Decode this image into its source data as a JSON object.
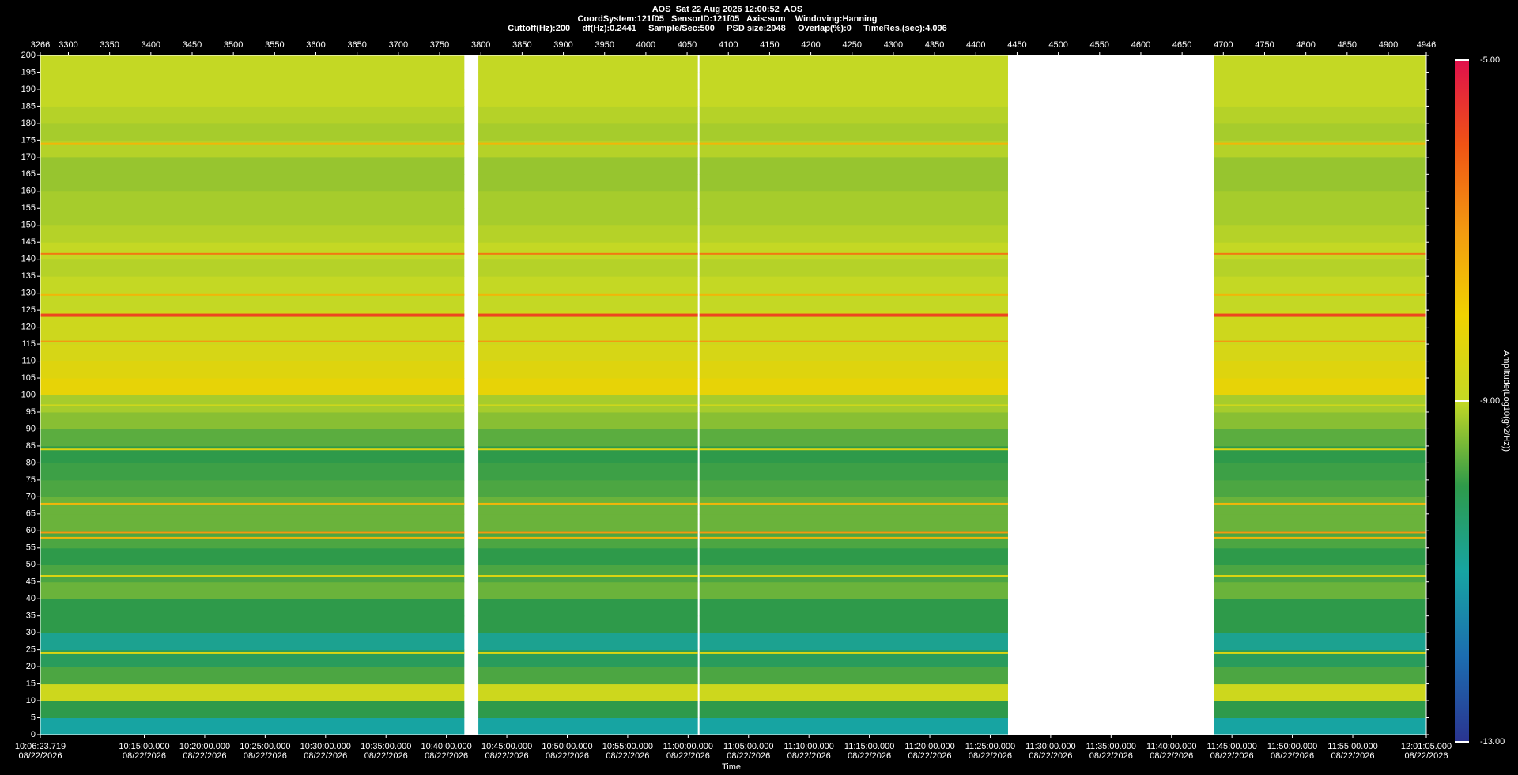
{
  "chart_data": {
    "type": "spectrogram",
    "title": "AOS  Sat 22 Aug 2026 12:00:52  AOS",
    "subtitle": [
      "CoordSystem:121f05   SensorID:121f05   Axis:sum    Windoving:Hanning",
      "Cuttoff(Hz):200     df(Hz):0.2441     Sample/Sec:500     PSD size:2048     Overlap(%):0     TimeRes.(sec):4.096"
    ],
    "xlabel": "Time",
    "colorbar_label": "Amplitude(Log10(g^2/Hz))",
    "xlim": [
      3266,
      4946
    ],
    "xticks": [
      3266,
      3300,
      3350,
      3400,
      3450,
      3500,
      3550,
      3600,
      3650,
      3700,
      3750,
      3800,
      3850,
      3900,
      3950,
      4000,
      4050,
      4100,
      4150,
      4200,
      4250,
      4300,
      4350,
      4400,
      4450,
      4500,
      4550,
      4600,
      4650,
      4700,
      4750,
      4800,
      4850,
      4900,
      4946
    ],
    "timelim": [
      36383.719,
      43265
    ],
    "timeticks": [
      {
        "value": 36383.719,
        "label": "10:06:23.719",
        "date": "08/22/2026"
      },
      {
        "value": 36900,
        "label": "10:15:00.000",
        "date": "08/22/2026"
      },
      {
        "value": 37200,
        "label": "10:20:00.000",
        "date": "08/22/2026"
      },
      {
        "value": 37500,
        "label": "10:25:00.000",
        "date": "08/22/2026"
      },
      {
        "value": 37800,
        "label": "10:30:00.000",
        "date": "08/22/2026"
      },
      {
        "value": 38100,
        "label": "10:35:00.000",
        "date": "08/22/2026"
      },
      {
        "value": 38400,
        "label": "10:40:00.000",
        "date": "08/22/2026"
      },
      {
        "value": 38700,
        "label": "10:45:00.000",
        "date": "08/22/2026"
      },
      {
        "value": 39000,
        "label": "10:50:00.000",
        "date": "08/22/2026"
      },
      {
        "value": 39300,
        "label": "10:55:00.000",
        "date": "08/22/2026"
      },
      {
        "value": 39600,
        "label": "11:00:00.000",
        "date": "08/22/2026"
      },
      {
        "value": 39900,
        "label": "11:05:00.000",
        "date": "08/22/2026"
      },
      {
        "value": 40200,
        "label": "11:10:00.000",
        "date": "08/22/2026"
      },
      {
        "value": 40500,
        "label": "11:15:00.000",
        "date": "08/22/2026"
      },
      {
        "value": 40800,
        "label": "11:20:00.000",
        "date": "08/22/2026"
      },
      {
        "value": 41100,
        "label": "11:25:00.000",
        "date": "08/22/2026"
      },
      {
        "value": 41400,
        "label": "11:30:00.000",
        "date": "08/22/2026"
      },
      {
        "value": 41700,
        "label": "11:35:00.000",
        "date": "08/22/2026"
      },
      {
        "value": 42000,
        "label": "11:40:00.000",
        "date": "08/22/2026"
      },
      {
        "value": 42300,
        "label": "11:45:00.000",
        "date": "08/22/2026"
      },
      {
        "value": 42600,
        "label": "11:50:00.000",
        "date": "08/22/2026"
      },
      {
        "value": 42900,
        "label": "11:55:00.000",
        "date": "08/22/2026"
      },
      {
        "value": 43265,
        "label": "12:01:05.000",
        "date": "08/22/2026"
      }
    ],
    "ylim": [
      0,
      200
    ],
    "yticks": [
      0,
      5,
      10,
      15,
      20,
      25,
      30,
      35,
      40,
      45,
      50,
      55,
      60,
      65,
      70,
      75,
      80,
      85,
      90,
      95,
      100,
      105,
      110,
      115,
      120,
      125,
      130,
      135,
      140,
      145,
      150,
      155,
      160,
      165,
      170,
      175,
      180,
      185,
      190,
      195,
      200
    ],
    "clim": [
      -13,
      -5
    ],
    "cticks": [
      {
        "value": -13,
        "label": "-13.00"
      },
      {
        "value": -9,
        "label": "-9.00"
      },
      {
        "value": -5,
        "label": "-5.00"
      }
    ],
    "colors": [
      "#2a3490",
      "#1c6db0",
      "#17a4a2",
      "#2e9a4a",
      "#c4d824",
      "#f0d200",
      "#f39a10",
      "#f05414",
      "#e0104c"
    ],
    "segments": [
      [
        3266,
        3780
      ],
      [
        3797,
        4063
      ],
      [
        4065,
        4439
      ],
      [
        4689,
        4946
      ]
    ],
    "freq_bins": [
      0,
      5,
      10,
      15,
      20,
      25,
      30,
      35,
      40,
      45,
      50,
      55,
      60,
      65,
      70,
      75,
      80,
      85,
      90,
      95,
      100,
      105,
      110,
      115,
      120,
      125,
      130,
      135,
      140,
      145,
      150,
      155,
      160,
      165,
      170,
      175,
      180,
      185,
      190,
      195,
      200
    ],
    "values": [
      -11,
      -10,
      -8.8,
      -9.8,
      -10.2,
      -10.8,
      -10,
      -10,
      -9.6,
      -9.8,
      -10,
      -9.8,
      -9.6,
      -9.6,
      -9.8,
      -9.9,
      -10,
      -9.7,
      -9.4,
      -9.2,
      -8.2,
      -8.4,
      -8.6,
      -8.8,
      -8.8,
      -9,
      -9,
      -9.1,
      -9,
      -9.1,
      -9.2,
      -9.2,
      -9.3,
      -9.3,
      -9.1,
      -9.2,
      -9.1,
      -9,
      -9,
      -9
    ],
    "tones": {
      "freq": [
        174,
        141.6,
        129.5,
        123.5,
        115.8,
        97,
        84,
        68,
        59.5,
        58,
        46.8,
        24
      ],
      "values": [
        -7.5,
        -6.5,
        -7.5,
        -5.8,
        -7,
        -8.8,
        -8.5,
        -7.5,
        -7,
        -7.5,
        -8.5,
        -8.5
      ]
    }
  }
}
